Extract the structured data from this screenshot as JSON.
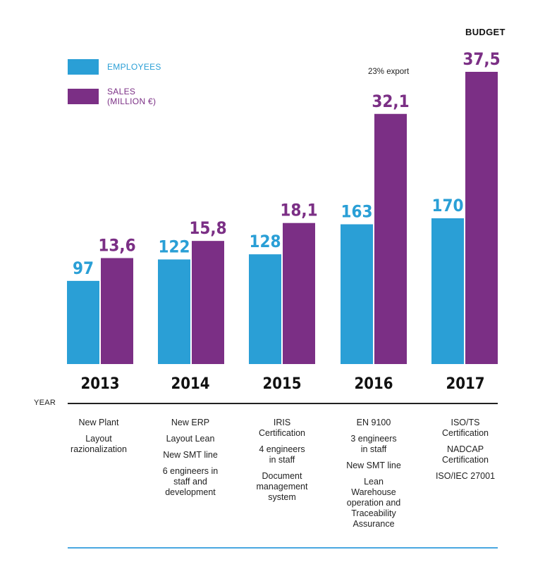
{
  "legend": {
    "employees": "EMPLOYEES",
    "sales_line1": "SALES",
    "sales_line2": "(MILLION €)"
  },
  "budget_label": "BUDGET",
  "export_note": "23% export",
  "axis_label": "YEAR",
  "colors": {
    "employees": "#2a9fd6",
    "sales": "#7b2f85",
    "axis": "#222222",
    "bottom_rule": "#4aa8e0"
  },
  "chart_data": {
    "type": "bar",
    "categories": [
      "2013",
      "2014",
      "2015",
      "2016",
      "2017"
    ],
    "series": [
      {
        "name": "EMPLOYEES",
        "values": [
          97,
          122,
          128,
          163,
          170
        ],
        "labels": [
          "97",
          "122",
          "128",
          "163",
          "170"
        ]
      },
      {
        "name": "SALES (MILLION €)",
        "values": [
          13.6,
          15.8,
          18.1,
          32.1,
          37.5
        ],
        "labels": [
          "13,6",
          "15,8",
          "18,1",
          "32,1",
          "37,5"
        ]
      }
    ],
    "xlabel": "YEAR"
  },
  "milestones": [
    [
      "New Plant",
      "Layout\nrazionalization"
    ],
    [
      "New ERP",
      "Layout Lean",
      "New SMT line",
      "6 engineers in\nstaff and\ndevelopment"
    ],
    [
      "IRIS\nCertification",
      "4 engineers\nin staff",
      "Document\nmanagement\nsystem"
    ],
    [
      "EN 9100",
      "3 engineers\nin staff",
      "New SMT line",
      "Lean\nWarehouse\noperation and\nTraceability\nAssurance"
    ],
    [
      "ISO/TS\nCertification",
      "NADCAP\nCertification",
      "ISO/IEC 27001"
    ]
  ]
}
